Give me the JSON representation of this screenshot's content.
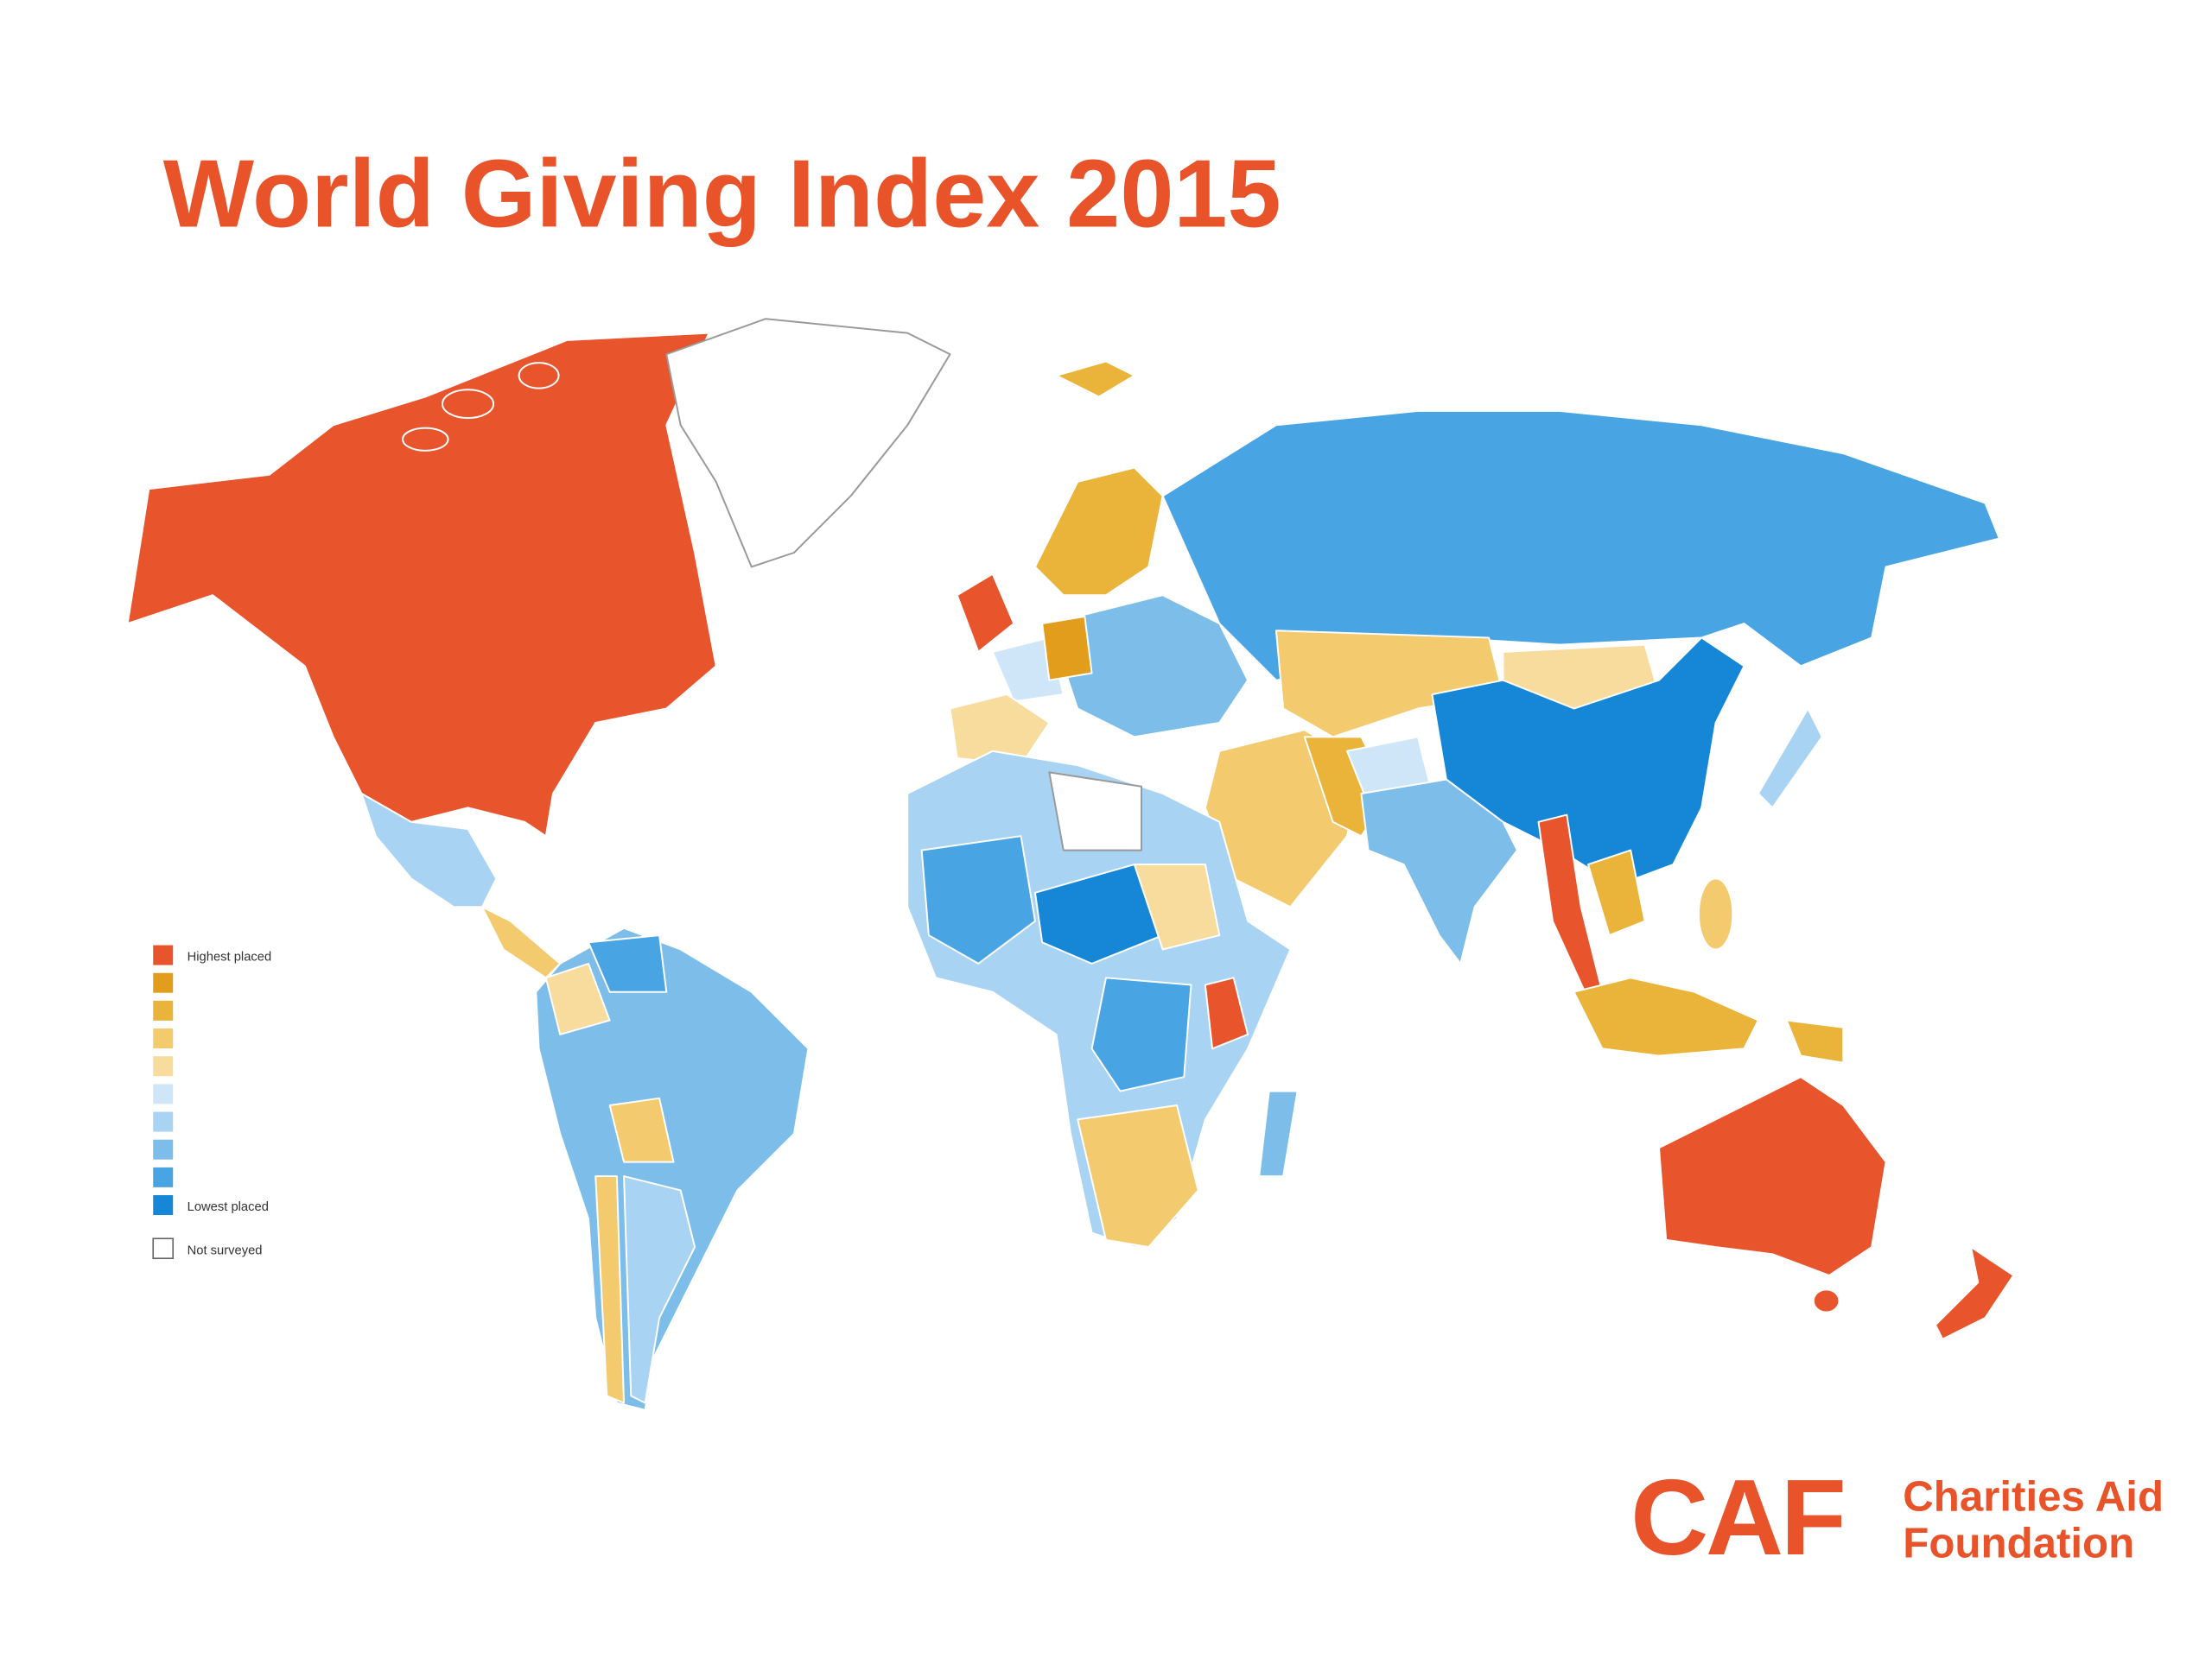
{
  "header": {
    "title": "World Giving Index 2015"
  },
  "legend": {
    "items": [
      {
        "color": "#e8542b",
        "label": "Highest placed"
      },
      {
        "color": "#e39d1c",
        "label": null
      },
      {
        "color": "#eab43a",
        "label": null
      },
      {
        "color": "#f3ca6e",
        "label": null
      },
      {
        "color": "#f7dc9e",
        "label": null
      },
      {
        "color": "#cfe6f8",
        "label": null
      },
      {
        "color": "#a9d3f3",
        "label": null
      },
      {
        "color": "#7cbde9",
        "label": null
      },
      {
        "color": "#48a4e2",
        "label": null
      },
      {
        "color": "#1587d6",
        "label": "Lowest placed"
      }
    ],
    "not_surveyed": {
      "color": "#ffffff",
      "label": "Not surveyed"
    }
  },
  "logo": {
    "mark": "CAF",
    "line1": "Charities Aid",
    "line2": "Foundation"
  }
}
